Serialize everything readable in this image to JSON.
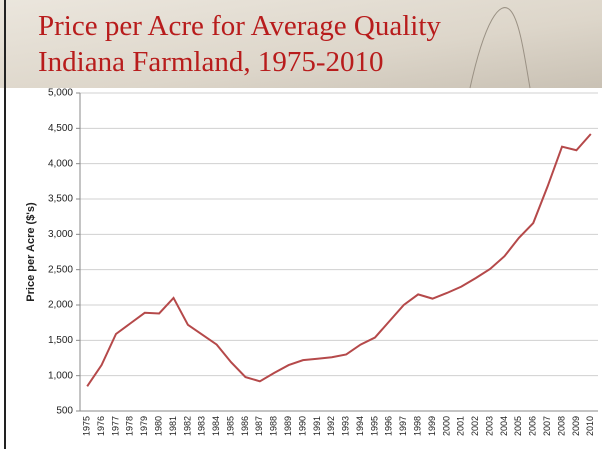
{
  "chart_data": {
    "type": "line",
    "title": "Price per Acre for Average Quality Indiana Farmland, 1975-2010",
    "y_label": "Price per Acre ($'s)",
    "categories": [
      "1975",
      "1976",
      "1977",
      "1978",
      "1979",
      "1980",
      "1981",
      "1982",
      "1983",
      "1984",
      "1985",
      "1986",
      "1987",
      "1988",
      "1989",
      "1990",
      "1991",
      "1992",
      "1993",
      "1994",
      "1995",
      "1996",
      "1997",
      "1998",
      "1999",
      "2000",
      "2001",
      "2002",
      "2003",
      "2004",
      "2005",
      "2006",
      "2007",
      "2008",
      "2009",
      "2010"
    ],
    "values": [
      850,
      1150,
      1590,
      1740,
      1890,
      1880,
      2100,
      1720,
      1580,
      1440,
      1190,
      980,
      920,
      1040,
      1150,
      1220,
      1240,
      1260,
      1300,
      1440,
      1540,
      1770,
      2000,
      2150,
      2090,
      2170,
      2260,
      2380,
      2510,
      2690,
      2950,
      3160,
      3680,
      4240,
      4190,
      4420
    ],
    "color": "#b5494a",
    "ylim": [
      500,
      5000
    ],
    "yticks": [
      500,
      {
        "value": 1000,
        "label": "1,000"
      },
      {
        "value": 1500,
        "label": "1,500"
      },
      {
        "value": 2000,
        "label": "2,000"
      },
      {
        "value": 2500,
        "label": "2,500"
      },
      {
        "value": 3000,
        "label": "3,000"
      },
      {
        "value": 3500,
        "label": "3,500"
      },
      {
        "value": 4000,
        "label": "4,000"
      },
      {
        "value": 4500,
        "label": "4,500"
      },
      {
        "value": 5000,
        "label": "5,000"
      }
    ],
    "grid": true
  }
}
